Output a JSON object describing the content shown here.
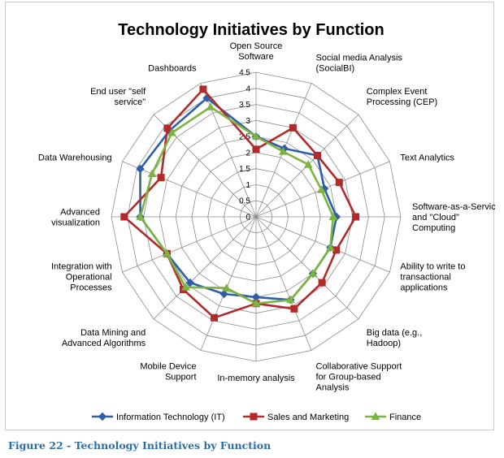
{
  "figure": {
    "caption": "Figure 22 - Technology Initiatives by Function"
  },
  "chart_data": {
    "type": "radar",
    "title": "Technology Initiatives by Function",
    "categories": [
      "Open Source\nSoftware",
      "Social media Analysis\n(SocialBI)",
      "Complex Event\nProcessing (CEP)",
      "Text Analytics",
      "Software-as-a-Service\nand \"Cloud\"\nComputing",
      "Ability to write to\ntransactional\napplications",
      "Big data (e.g.,\nHadoop)",
      "Collaborative Support\nfor Group-based\nAnalysis",
      "In-memory analysis",
      "Mobile Device\nSupport",
      "Data Mining and\nAdvanced Algorithms",
      "Integration with\nOperational\nProcesses",
      "Advanced\nvisualization",
      "Data Warehousing",
      "End user \"self\nservice\"",
      "Dashboards"
    ],
    "ticks": [
      "0",
      "0.5",
      "1",
      "1.5",
      "2",
      "2.5",
      "3",
      "3.5",
      "4",
      "4.5"
    ],
    "rmax": 4.5,
    "series": [
      {
        "name": "Information Technology (IT)",
        "color": "#2e5fa8",
        "marker": "diamond",
        "values": [
          2.5,
          2.3,
          2.7,
          2.3,
          2.5,
          2.5,
          2.5,
          2.8,
          2.5,
          2.6,
          2.9,
          3.0,
          3.6,
          3.9,
          3.8,
          4.0
        ]
      },
      {
        "name": "Sales and Marketing",
        "color": "#b22a2a",
        "marker": "square",
        "values": [
          2.1,
          3.0,
          2.7,
          2.8,
          3.1,
          2.7,
          2.9,
          3.1,
          2.7,
          3.4,
          3.2,
          3.0,
          4.1,
          3.2,
          3.9,
          4.3
        ]
      },
      {
        "name": "Finance",
        "color": "#7cb342",
        "marker": "triangle",
        "values": [
          2.5,
          2.2,
          2.3,
          2.2,
          2.4,
          2.5,
          2.5,
          2.8,
          2.7,
          2.4,
          3.1,
          3.0,
          3.6,
          3.5,
          3.7,
          3.7
        ]
      }
    ],
    "grid": true,
    "legend_position": "bottom"
  }
}
